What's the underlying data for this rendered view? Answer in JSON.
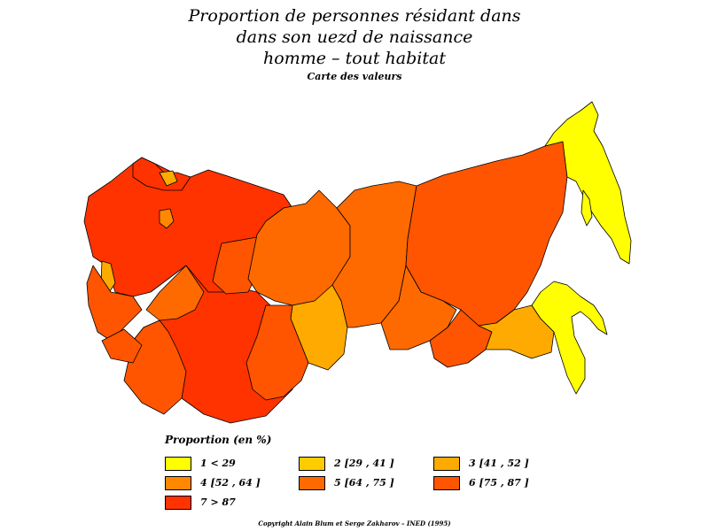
{
  "title": {
    "line1": "Proportion de personnes résidant dans",
    "line2": "dans son uezd de naissance",
    "line3": "homme  –  tout habitat",
    "subtitle": "Carte des valeurs"
  },
  "legend": {
    "title": "Proportion (en %)",
    "classes": [
      {
        "label": "1  <  29",
        "color": "#ffff00"
      },
      {
        "label": "2  [29  ,  41 ]",
        "color": "#ffcc00"
      },
      {
        "label": "3  [41  ,  52 ]",
        "color": "#ffaa00"
      },
      {
        "label": "4  [52  ,  64 ]",
        "color": "#ff8800"
      },
      {
        "label": "5  [64  ,  75 ]",
        "color": "#ff6a00"
      },
      {
        "label": "6  [75  ,  87 ]",
        "color": "#ff5500"
      },
      {
        "label": "7  >  87",
        "color": "#ff3300"
      }
    ]
  },
  "copyright": "Copyright Alain Blum et Serge Zakharov  –  INED (1995)"
}
